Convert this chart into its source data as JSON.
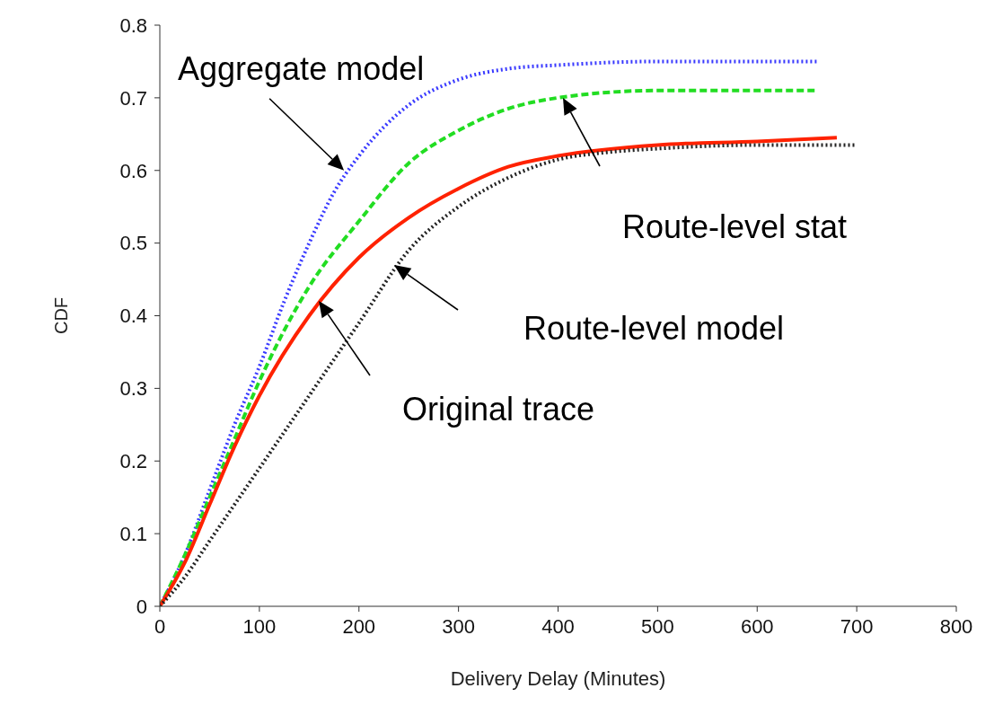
{
  "chart_data": {
    "type": "line",
    "xlabel": "Delivery Delay (Minutes)",
    "ylabel": "CDF",
    "xlim": [
      0,
      800
    ],
    "xticks": [
      0,
      100,
      200,
      300,
      400,
      500,
      600,
      700,
      800
    ],
    "ylim": [
      0,
      0.8
    ],
    "yticks": [
      0,
      0.1,
      0.2,
      0.3,
      0.4,
      0.5,
      0.6,
      0.7,
      0.8
    ],
    "grid": false,
    "legend": false,
    "marker": "none",
    "series": [
      {
        "color": "#3a3aff",
        "line_style": "dotted",
        "x": [
          0,
          25,
          50,
          75,
          100,
          125,
          150,
          175,
          200,
          250,
          300,
          350,
          400,
          500,
          660
        ],
        "values": [
          0,
          0.07,
          0.16,
          0.25,
          0.33,
          0.42,
          0.5,
          0.57,
          0.62,
          0.69,
          0.725,
          0.74,
          0.745,
          0.75,
          0.75
        ]
      },
      {
        "color": "#22dd22",
        "line_style": "dashed",
        "x": [
          0,
          25,
          50,
          75,
          100,
          150,
          200,
          250,
          300,
          350,
          400,
          500,
          660
        ],
        "values": [
          0,
          0.07,
          0.15,
          0.23,
          0.31,
          0.44,
          0.53,
          0.61,
          0.655,
          0.685,
          0.7,
          0.71,
          0.71
        ]
      },
      {
        "color": "#ff2200",
        "line_style": "solid",
        "x": [
          0,
          25,
          50,
          75,
          100,
          150,
          200,
          250,
          300,
          350,
          400,
          500,
          600,
          680
        ],
        "values": [
          0,
          0.06,
          0.14,
          0.22,
          0.29,
          0.4,
          0.48,
          0.535,
          0.575,
          0.605,
          0.62,
          0.635,
          0.64,
          0.645
        ]
      },
      {
        "color": "#222222",
        "line_style": "dotted",
        "x": [
          0,
          25,
          50,
          100,
          150,
          200,
          250,
          300,
          350,
          400,
          450,
          500,
          600,
          700
        ],
        "values": [
          0,
          0.04,
          0.09,
          0.19,
          0.29,
          0.39,
          0.49,
          0.55,
          0.59,
          0.615,
          0.625,
          0.63,
          0.635,
          0.635
        ]
      }
    ],
    "annotations": [
      {
        "text": "Aggregate model",
        "x": 185,
        "y": 0.6
      },
      "Route-level stat",
      "Route-level model",
      "Original trace"
    ]
  }
}
